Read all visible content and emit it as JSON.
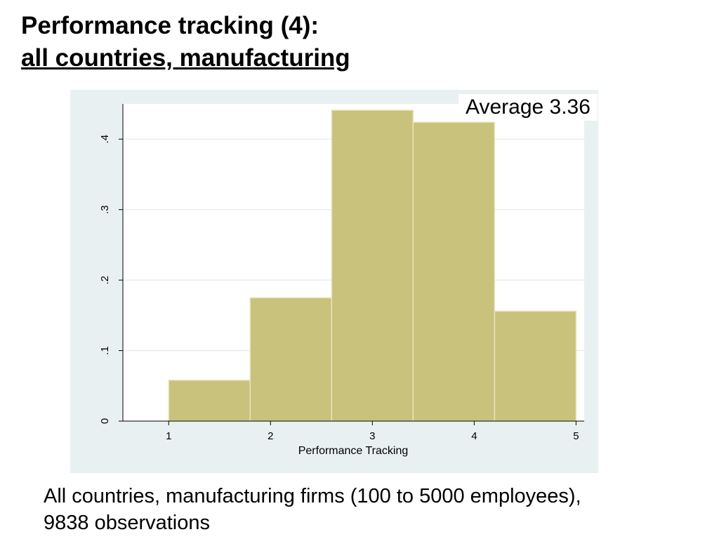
{
  "title": {
    "line1": "Performance tracking (4):",
    "line2": "all countries, manufacturing"
  },
  "annotation": "Average 3.36",
  "footnote": {
    "line1": "All countries, manufacturing firms (100 to 5000 employees),",
    "line2": "9838 observations"
  },
  "colors": {
    "bar_fill": "#c9c27c",
    "bar_stroke": "#e8e4bc",
    "panel_bg": "#e9f0f2",
    "plot_bg": "#ffffff",
    "grid": "#e8eef0",
    "axis": "#000000"
  },
  "chart_data": {
    "type": "bar",
    "title": "",
    "xlabel": "Performance Tracking",
    "ylabel": "",
    "bins": [
      {
        "from": 1.0,
        "to": 1.8,
        "value": 0.058
      },
      {
        "from": 1.8,
        "to": 2.6,
        "value": 0.175
      },
      {
        "from": 2.6,
        "to": 3.4,
        "value": 0.441
      },
      {
        "from": 3.4,
        "to": 4.2,
        "value": 0.424
      },
      {
        "from": 4.2,
        "to": 5.0,
        "value": 0.156
      }
    ],
    "xlim": [
      0.55,
      5.08
    ],
    "ylim": [
      0,
      0.45
    ],
    "xticks": [
      1,
      2,
      3,
      4,
      5
    ],
    "xtick_labels": [
      "1",
      "2",
      "3",
      "4",
      "5"
    ],
    "yticks": [
      0,
      0.1,
      0.2,
      0.3,
      0.4
    ],
    "ytick_labels": [
      "0",
      ".1",
      ".2",
      ".3",
      ".4"
    ],
    "grid": true
  }
}
